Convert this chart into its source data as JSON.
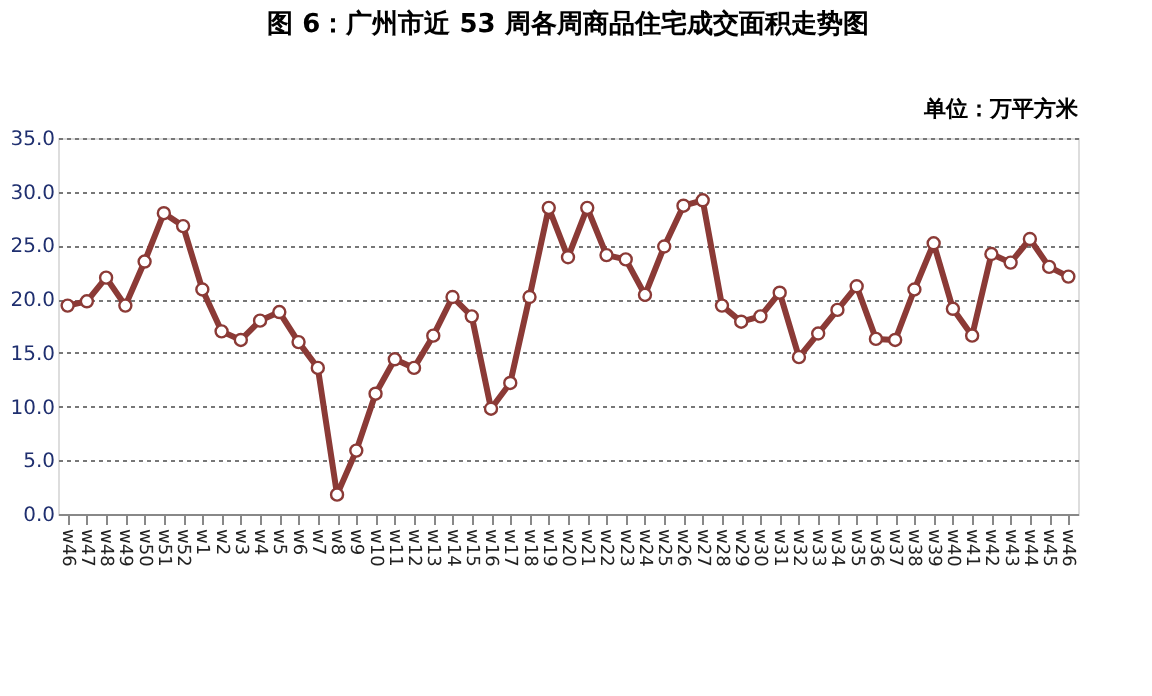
{
  "chart_data": {
    "type": "line",
    "title": "图 6：广州市近 53 周各周商品住宅成交面积走势图",
    "annotations": [
      "单位：万平方米"
    ],
    "categories": [
      "w46",
      "w47",
      "w48",
      "w49",
      "w50",
      "w51",
      "w52",
      "w1",
      "w2",
      "w3",
      "w4",
      "w5",
      "w6",
      "w7",
      "w8",
      "w9",
      "w10",
      "w11",
      "w12",
      "w13",
      "w14",
      "w15",
      "w16",
      "w17",
      "w18",
      "w19",
      "w20",
      "w21",
      "w22",
      "w23",
      "w24",
      "w25",
      "w26",
      "w27",
      "w28",
      "w29",
      "w30",
      "w31",
      "w32",
      "w33",
      "w34",
      "w35",
      "w36",
      "w37",
      "w38",
      "w39",
      "w40",
      "w41",
      "w42",
      "w43",
      "w44",
      "w45",
      "w46"
    ],
    "series": [
      {
        "color": "#8b3a36",
        "values": [
          19.4,
          19.8,
          22.0,
          19.4,
          23.5,
          28.0,
          26.8,
          20.9,
          17.0,
          16.2,
          18.0,
          18.8,
          16.0,
          13.6,
          1.8,
          5.9,
          11.2,
          14.4,
          13.6,
          16.6,
          20.2,
          18.4,
          9.8,
          12.2,
          20.2,
          28.5,
          23.9,
          28.5,
          24.1,
          23.7,
          20.4,
          24.9,
          28.7,
          29.2,
          19.4,
          17.9,
          18.4,
          20.6,
          14.6,
          16.8,
          19.0,
          21.2,
          16.3,
          16.2,
          20.9,
          25.2,
          19.1,
          16.6,
          24.2,
          23.4,
          25.6,
          23.0,
          22.1
        ]
      }
    ],
    "ylim": [
      0,
      35
    ],
    "yticks": [
      {
        "value": 0,
        "label": "0.0"
      },
      {
        "value": 5,
        "label": "5.0"
      },
      {
        "value": 10,
        "label": "10.0"
      },
      {
        "value": 15,
        "label": "15.0"
      },
      {
        "value": 20,
        "label": "20.0"
      },
      {
        "value": 25,
        "label": "25.0"
      },
      {
        "value": 30,
        "label": "30.0"
      },
      {
        "value": 35,
        "label": "35.0"
      }
    ],
    "grid": "y",
    "marker": "circle",
    "line_style": "solid",
    "legend": false
  }
}
